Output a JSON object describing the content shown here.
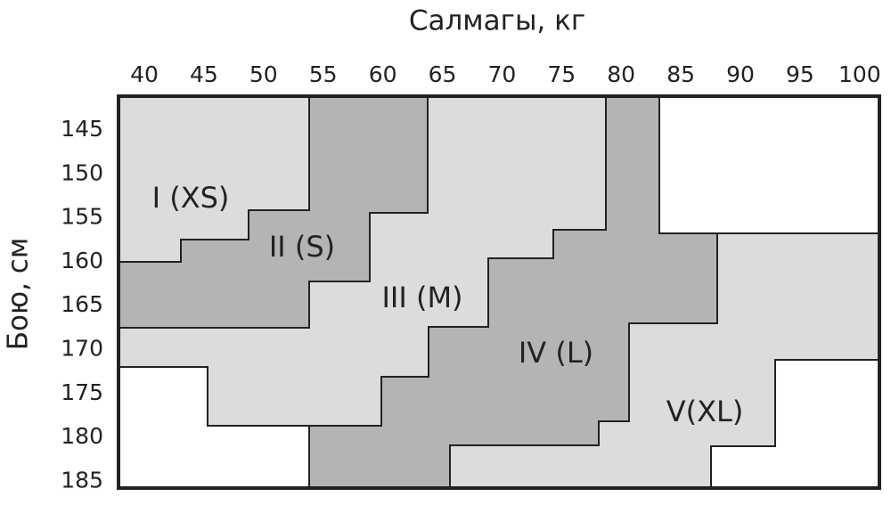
{
  "title": "Салмагы, кг",
  "y_label": "Бою, см",
  "x_ticks": [
    40,
    45,
    50,
    55,
    60,
    65,
    70,
    75,
    80,
    85,
    90,
    95,
    100
  ],
  "y_ticks": [
    145,
    150,
    155,
    160,
    165,
    170,
    175,
    180,
    185
  ],
  "regions": [
    "I (XS)",
    "II (S)",
    "III (M)",
    "IV (L)",
    "V(XL)"
  ]
}
